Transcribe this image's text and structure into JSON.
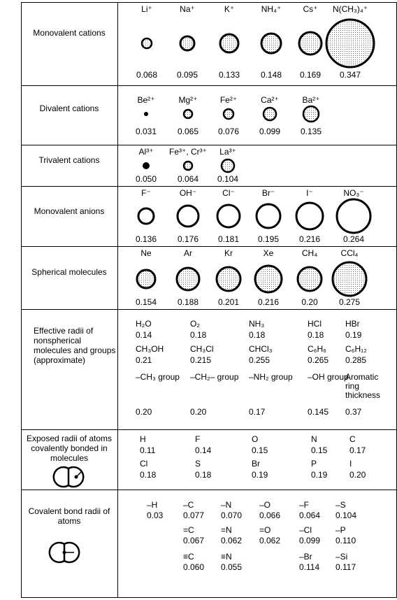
{
  "rows": {
    "monovalent_cations": {
      "label": "Monovalent cations",
      "items": [
        {
          "name": "Li⁺",
          "value": "0.068"
        },
        {
          "name": "Na⁺",
          "value": "0.095"
        },
        {
          "name": "K⁺",
          "value": "0.133"
        },
        {
          "name": "NH₄⁺",
          "value": "0.148"
        },
        {
          "name": "Cs⁺",
          "value": "0.169"
        },
        {
          "name": "N(CH₃)₄⁺",
          "value": "0.347"
        }
      ]
    },
    "divalent_cations": {
      "label": "Divalent cations",
      "items": [
        {
          "name": "Be²⁺",
          "value": "0.031"
        },
        {
          "name": "Mg²⁺",
          "value": "0.065"
        },
        {
          "name": "Fe²⁺",
          "value": "0.076"
        },
        {
          "name": "Ca²⁺",
          "value": "0.099"
        },
        {
          "name": "Ba²⁺",
          "value": "0.135"
        }
      ]
    },
    "trivalent_cations": {
      "label": "Trivalent cations",
      "items": [
        {
          "name": "Al³⁺",
          "value": "0.050"
        },
        {
          "name": "Fe³⁺, Cr³⁺",
          "value": "0.064"
        },
        {
          "name": "La³⁺",
          "value": "0.104"
        }
      ]
    },
    "monovalent_anions": {
      "label": "Monovalent anions",
      "items": [
        {
          "name": "F⁻",
          "value": "0.136"
        },
        {
          "name": "OH⁻",
          "value": "0.176"
        },
        {
          "name": "Cl⁻",
          "value": "0.181"
        },
        {
          "name": "Br⁻",
          "value": "0.195"
        },
        {
          "name": "I⁻",
          "value": "0.216"
        },
        {
          "name": "NO₃⁻",
          "value": "0.264"
        }
      ]
    },
    "spherical_molecules": {
      "label": "Spherical molecules",
      "items": [
        {
          "name": "Ne",
          "value": "0.154"
        },
        {
          "name": "Ar",
          "value": "0.188"
        },
        {
          "name": "Kr",
          "value": "0.201"
        },
        {
          "name": "Xe",
          "value": "0.216"
        },
        {
          "name": "CH₄",
          "value": "0.20"
        },
        {
          "name": "CCl₄",
          "value": "0.275"
        }
      ]
    },
    "effective_radii": {
      "label": "Effective radii of nonspherical molecules and groups (approximate)",
      "items": [
        {
          "name": "H₂O",
          "value": "0.14"
        },
        {
          "name": "O₂",
          "value": "0.18"
        },
        {
          "name": "NH₃",
          "value": "0.18"
        },
        {
          "name": "HCl",
          "value": "0.18"
        },
        {
          "name": "HBr",
          "value": "0.19"
        },
        {
          "name": "CH₃OH",
          "value": "0.21"
        },
        {
          "name": "CH₃Cl",
          "value": "0.215"
        },
        {
          "name": "CHCl₃",
          "value": "0.255"
        },
        {
          "name": "C₆H₆",
          "value": "0.265"
        },
        {
          "name": "C₆H₁₂",
          "value": "0.285"
        },
        {
          "name": "–CH₃ group",
          "value": "0.20"
        },
        {
          "name": "–CH₂– group",
          "value": "0.20"
        },
        {
          "name": "–NH₂ group",
          "value": "0.17"
        },
        {
          "name": "–OH group",
          "value": "0.145"
        },
        {
          "name": "Aromatic ring thickness",
          "value": "0.37"
        }
      ]
    },
    "exposed_radii": {
      "label": "Exposed radii of atoms covalently bonded in molecules",
      "items": [
        {
          "name": "H",
          "value": "0.11"
        },
        {
          "name": "F",
          "value": "0.14"
        },
        {
          "name": "O",
          "value": "0.15"
        },
        {
          "name": "N",
          "value": "0.15"
        },
        {
          "name": "C",
          "value": "0.17"
        },
        {
          "name": "Cl",
          "value": "0.18"
        },
        {
          "name": "S",
          "value": "0.18"
        },
        {
          "name": "Br",
          "value": "0.19"
        },
        {
          "name": "P",
          "value": "0.19"
        },
        {
          "name": "I",
          "value": "0.20"
        }
      ]
    },
    "covalent_bond_radii": {
      "label": "Covalent bond radii of atoms",
      "items": [
        {
          "name": "–H",
          "value": "0.03"
        },
        {
          "name": "–C",
          "value": "0.077"
        },
        {
          "name": "–N",
          "value": "0.070"
        },
        {
          "name": "–O",
          "value": "0.066"
        },
        {
          "name": "–F",
          "value": "0.064"
        },
        {
          "name": "–S",
          "value": "0.104"
        },
        {
          "name": "=C",
          "value": "0.067"
        },
        {
          "name": "=N",
          "value": "0.062"
        },
        {
          "name": "=O",
          "value": "0.062"
        },
        {
          "name": "–Cl",
          "value": "0.099"
        },
        {
          "name": "–P",
          "value": "0.110"
        },
        {
          "name": "≡C",
          "value": "0.060"
        },
        {
          "name": "≡N",
          "value": "0.055"
        },
        {
          "name": "–Br",
          "value": "0.114"
        },
        {
          "name": "–Si",
          "value": "0.117"
        }
      ]
    }
  }
}
